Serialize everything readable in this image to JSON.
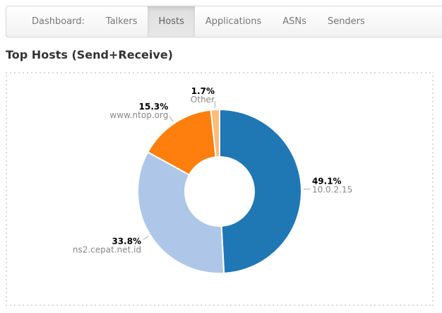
{
  "navbar": {
    "items": [
      {
        "label": "Dashboard:",
        "active": false
      },
      {
        "label": "Talkers",
        "active": false
      },
      {
        "label": "Hosts",
        "active": true
      },
      {
        "label": "Applications",
        "active": false
      },
      {
        "label": "ASNs",
        "active": false
      },
      {
        "label": "Senders",
        "active": false
      }
    ]
  },
  "page": {
    "title": "Top Hosts (Send+Receive)"
  },
  "chart_data": {
    "type": "pie",
    "subtype": "donut",
    "title": "Top Hosts (Send+Receive)",
    "start_angle_deg": 0,
    "direction": "clockwise",
    "legend_position": "none",
    "donut_hole_color": "#ffffff",
    "percent_label_color": "#000000",
    "name_label_color": "#888888",
    "slices": [
      {
        "label": "10.0.2.15",
        "value": 49.1,
        "display": "49.1%",
        "color": "#1f77b4"
      },
      {
        "label": "ns2.cepat.net.id",
        "value": 33.8,
        "display": "33.8%",
        "color": "#aec7e8"
      },
      {
        "label": "www.ntop.org",
        "value": 15.3,
        "display": "15.3%",
        "color": "#ff7f0e"
      },
      {
        "label": "Other",
        "value": 1.7,
        "display": "1.7%",
        "color": "#ffbb78"
      }
    ]
  }
}
